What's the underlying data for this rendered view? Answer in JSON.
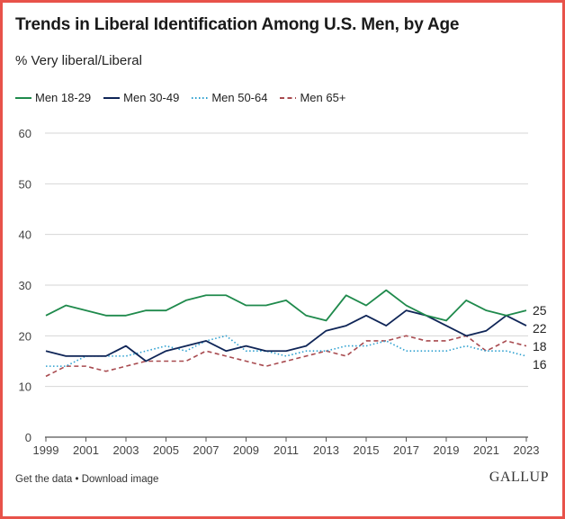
{
  "header": {
    "title": "Trends in Liberal Identification Among U.S. Men, by Age",
    "subtitle": "% Very liberal/Liberal"
  },
  "footer": {
    "get_data_label": "Get the data",
    "separator": "•",
    "download_label": "Download image",
    "brand": "GALLUP"
  },
  "chart_data": {
    "type": "line",
    "title": "Trends in Liberal Identification Among U.S. Men, by Age",
    "subtitle": "% Very liberal/Liberal",
    "xlabel": "",
    "ylabel": "",
    "xlim": [
      1999,
      2023
    ],
    "ylim": [
      0,
      60
    ],
    "yticks": [
      0,
      10,
      20,
      30,
      40,
      50,
      60
    ],
    "xticks": [
      1999,
      2001,
      2003,
      2005,
      2007,
      2009,
      2011,
      2013,
      2015,
      2017,
      2019,
      2021,
      2023
    ],
    "grid": true,
    "legend_position": "top-left",
    "x": [
      1999,
      2000,
      2001,
      2002,
      2003,
      2004,
      2005,
      2006,
      2007,
      2008,
      2009,
      2010,
      2011,
      2012,
      2013,
      2014,
      2015,
      2016,
      2017,
      2018,
      2019,
      2020,
      2021,
      2022,
      2023
    ],
    "series": [
      {
        "name": "Men 18-29",
        "color": "#1f8a4c",
        "dash": "solid",
        "end_label": "25",
        "values": [
          24,
          26,
          25,
          24,
          24,
          25,
          25,
          27,
          28,
          28,
          26,
          26,
          27,
          24,
          23,
          28,
          26,
          29,
          26,
          24,
          23,
          27,
          25,
          24,
          25
        ]
      },
      {
        "name": "Men 30-49",
        "color": "#0f2557",
        "dash": "solid",
        "end_label": "22",
        "values": [
          17,
          16,
          16,
          16,
          18,
          15,
          17,
          18,
          19,
          17,
          18,
          17,
          17,
          18,
          21,
          22,
          24,
          22,
          25,
          24,
          22,
          20,
          21,
          24,
          22
        ]
      },
      {
        "name": "Men 50-64",
        "color": "#2b9fcf",
        "dash": "dotted",
        "end_label": "16",
        "values": [
          14,
          14,
          16,
          16,
          16,
          17,
          18,
          17,
          19,
          20,
          17,
          17,
          16,
          17,
          17,
          18,
          18,
          19,
          17,
          17,
          17,
          18,
          17,
          17,
          16
        ]
      },
      {
        "name": "Men 65+",
        "color": "#a84a4f",
        "dash": "dashed",
        "end_label": "18",
        "values": [
          12,
          14,
          14,
          13,
          14,
          15,
          15,
          15,
          17,
          16,
          15,
          14,
          15,
          16,
          17,
          16,
          19,
          19,
          20,
          19,
          19,
          20,
          17,
          19,
          18
        ]
      }
    ]
  }
}
